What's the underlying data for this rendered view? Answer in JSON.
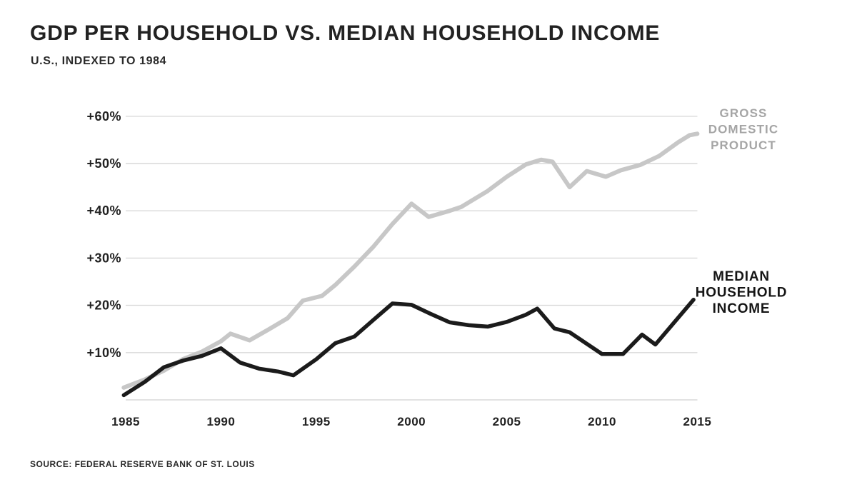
{
  "header": {
    "title": "GDP PER HOUSEHOLD VS. MEDIAN HOUSEHOLD INCOME",
    "subtitle": "U.S., INDEXED TO 1984"
  },
  "footer": {
    "source": "SOURCE: FEDERAL RESERVE BANK OF ST. LOUIS"
  },
  "colors": {
    "background": "#ffffff",
    "gridline": "#d9d9d9",
    "axis_text": "#222222",
    "gdp_line": "#c7c7c7",
    "gdp_label": "#a5a5a5",
    "income_line": "#1b1b1b",
    "income_label": "#151515"
  },
  "chart_data": {
    "type": "line",
    "title": "GDP PER HOUSEHOLD VS. MEDIAN HOUSEHOLD INCOME",
    "subtitle": "U.S., INDEXED TO 1984",
    "source": "SOURCE: FEDERAL RESERVE BANK OF ST. LOUIS",
    "legend_position": "inline-right",
    "grid": "horizontal-only",
    "x_axis": {
      "range": [
        1984.8,
        2015.3
      ],
      "ticks": [
        {
          "value": 1985,
          "label": "1985"
        },
        {
          "value": 1990,
          "label": "1990"
        },
        {
          "value": 1995,
          "label": "1995"
        },
        {
          "value": 2000,
          "label": "2000"
        },
        {
          "value": 2005,
          "label": "2005"
        },
        {
          "value": 2010,
          "label": "2010"
        },
        {
          "value": 2015,
          "label": "2015"
        }
      ]
    },
    "y_axis": {
      "unit": "percent change since 1984",
      "range": [
        0,
        63
      ],
      "baseline": 0,
      "ticks": [
        {
          "value": 10,
          "label": "+10%"
        },
        {
          "value": 20,
          "label": "+20%"
        },
        {
          "value": 30,
          "label": "+30%"
        },
        {
          "value": 40,
          "label": "+40%"
        },
        {
          "value": 50,
          "label": "+50%"
        },
        {
          "value": 60,
          "label": "+60%"
        }
      ]
    },
    "series": [
      {
        "name": "Gross Domestic Product",
        "label_lines": [
          "GROSS",
          "DOMESTIC",
          "PRODUCT"
        ],
        "color": "#c7c7c7",
        "label_color": "#a5a5a5",
        "stroke_width": 6,
        "points": [
          {
            "x": 1984.9,
            "y": 2.6
          },
          {
            "x": 1986.0,
            "y": 4.3
          },
          {
            "x": 1987.0,
            "y": 6.2
          },
          {
            "x": 1988.0,
            "y": 8.6
          },
          {
            "x": 1989.0,
            "y": 10.2
          },
          {
            "x": 1990.0,
            "y": 12.4
          },
          {
            "x": 1990.5,
            "y": 14.0
          },
          {
            "x": 1991.5,
            "y": 12.6
          },
          {
            "x": 1992.5,
            "y": 14.9
          },
          {
            "x": 1993.5,
            "y": 17.3
          },
          {
            "x": 1994.3,
            "y": 21.0
          },
          {
            "x": 1995.3,
            "y": 22.0
          },
          {
            "x": 1996.0,
            "y": 24.3
          },
          {
            "x": 1997.0,
            "y": 28.2
          },
          {
            "x": 1998.0,
            "y": 32.4
          },
          {
            "x": 1999.0,
            "y": 37.2
          },
          {
            "x": 2000.0,
            "y": 41.5
          },
          {
            "x": 2000.9,
            "y": 38.7
          },
          {
            "x": 2002.0,
            "y": 40.0
          },
          {
            "x": 2002.6,
            "y": 40.8
          },
          {
            "x": 2004.0,
            "y": 44.2
          },
          {
            "x": 2005.0,
            "y": 47.2
          },
          {
            "x": 2006.0,
            "y": 49.8
          },
          {
            "x": 2006.8,
            "y": 50.8
          },
          {
            "x": 2007.4,
            "y": 50.4
          },
          {
            "x": 2008.3,
            "y": 45.0
          },
          {
            "x": 2009.2,
            "y": 48.4
          },
          {
            "x": 2010.2,
            "y": 47.2
          },
          {
            "x": 2011.0,
            "y": 48.6
          },
          {
            "x": 2012.0,
            "y": 49.7
          },
          {
            "x": 2013.0,
            "y": 51.6
          },
          {
            "x": 2014.0,
            "y": 54.5
          },
          {
            "x": 2014.6,
            "y": 56.0
          },
          {
            "x": 2015.0,
            "y": 56.3
          }
        ]
      },
      {
        "name": "Median Household Income",
        "label_lines": [
          "MEDIAN",
          "HOUSEHOLD",
          "INCOME"
        ],
        "color": "#1b1b1b",
        "label_color": "#151515",
        "stroke_width": 5.5,
        "points": [
          {
            "x": 1984.9,
            "y": 1.0
          },
          {
            "x": 1986.0,
            "y": 3.8
          },
          {
            "x": 1987.0,
            "y": 6.9
          },
          {
            "x": 1988.0,
            "y": 8.3
          },
          {
            "x": 1989.0,
            "y": 9.3
          },
          {
            "x": 1990.0,
            "y": 10.9
          },
          {
            "x": 1991.0,
            "y": 7.9
          },
          {
            "x": 1992.0,
            "y": 6.6
          },
          {
            "x": 1993.0,
            "y": 6.0
          },
          {
            "x": 1993.8,
            "y": 5.2
          },
          {
            "x": 1995.0,
            "y": 8.6
          },
          {
            "x": 1996.0,
            "y": 12.0
          },
          {
            "x": 1997.0,
            "y": 13.4
          },
          {
            "x": 1998.0,
            "y": 16.9
          },
          {
            "x": 1999.0,
            "y": 20.4
          },
          {
            "x": 2000.0,
            "y": 20.1
          },
          {
            "x": 2001.0,
            "y": 18.2
          },
          {
            "x": 2002.0,
            "y": 16.4
          },
          {
            "x": 2003.0,
            "y": 15.8
          },
          {
            "x": 2004.0,
            "y": 15.5
          },
          {
            "x": 2005.0,
            "y": 16.5
          },
          {
            "x": 2006.0,
            "y": 18.0
          },
          {
            "x": 2006.6,
            "y": 19.3
          },
          {
            "x": 2007.5,
            "y": 15.1
          },
          {
            "x": 2008.3,
            "y": 14.3
          },
          {
            "x": 2010.0,
            "y": 9.7
          },
          {
            "x": 2011.1,
            "y": 9.7
          },
          {
            "x": 2012.1,
            "y": 13.8
          },
          {
            "x": 2012.8,
            "y": 11.7
          },
          {
            "x": 2014.8,
            "y": 21.2
          }
        ]
      }
    ]
  }
}
